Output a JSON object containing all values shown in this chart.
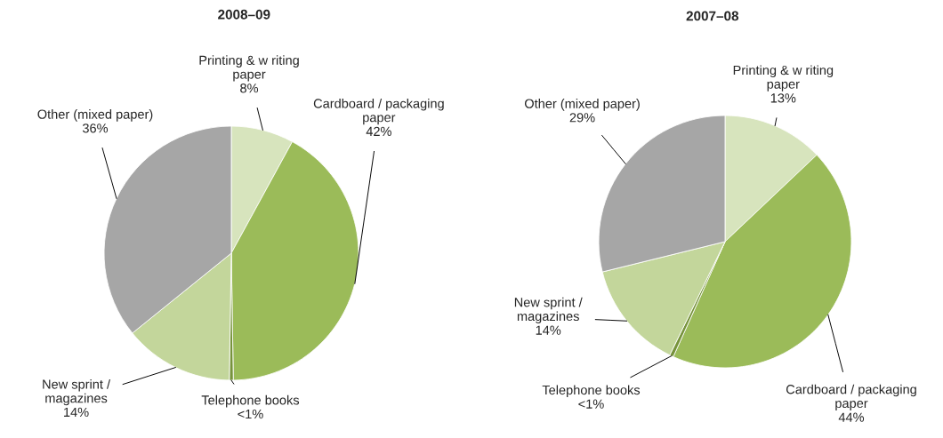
{
  "chart_data": [
    {
      "type": "pie",
      "title": "2008–09",
      "categories": [
        "Printing & w riting\npaper",
        "Cardboard / packaging\npaper",
        "Telephone books",
        "New sprint /\nmagazines",
        "Other (mixed paper)"
      ],
      "values": [
        8,
        42,
        0.5,
        14,
        36
      ],
      "value_labels": [
        "8%",
        "42%",
        "<1%",
        "14%",
        "36%"
      ],
      "colors": [
        "#d7e4bd",
        "#9bbb59",
        "#77933c",
        "#c3d69b",
        "#a6a6a6"
      ]
    },
    {
      "type": "pie",
      "title": "2007–08",
      "categories": [
        "Printing & w riting\npaper",
        "Cardboard / packaging\npaper",
        "Telephone books",
        "New sprint /\nmagazines",
        "Other (mixed paper)"
      ],
      "values": [
        13,
        44,
        0.5,
        14,
        29
      ],
      "value_labels": [
        "13%",
        "44%",
        "<1%",
        "14%",
        "29%"
      ],
      "colors": [
        "#d7e4bd",
        "#9bbb59",
        "#77933c",
        "#c3d69b",
        "#a6a6a6"
      ]
    }
  ]
}
